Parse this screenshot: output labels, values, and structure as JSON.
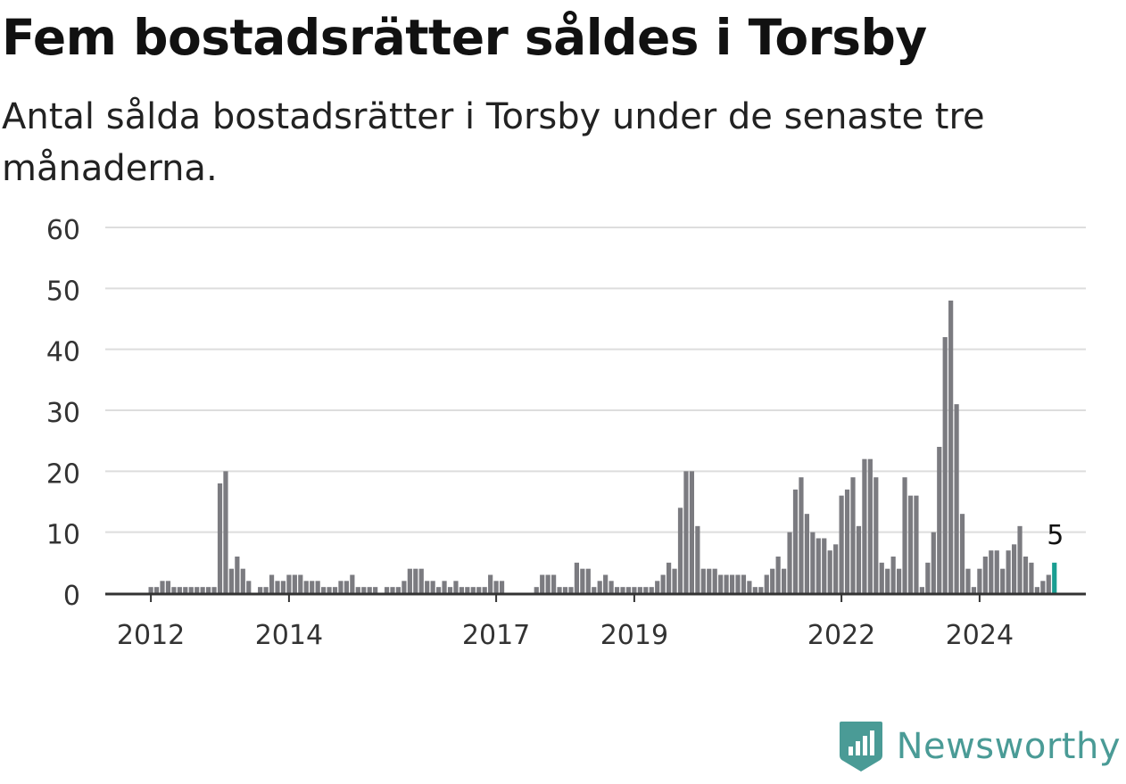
{
  "title": "Fem bostadsrätter såldes i Torsby",
  "subtitle": "Antal sålda bostadsrätter i Torsby under de senaste tre månaderna.",
  "brand": {
    "name": "Newsworthy",
    "icon": "bar-chart-logo-icon",
    "color": "#4a9b96"
  },
  "colors": {
    "bar": "#7b7b80",
    "highlight": "#1a9e92",
    "grid": "#dddddd",
    "axis": "#333333"
  },
  "chart_data": {
    "type": "bar",
    "title": "Fem bostadsrätter såldes i Torsby",
    "xlabel": "",
    "ylabel": "",
    "ylim": [
      0,
      60
    ],
    "yticks": [
      0,
      10,
      20,
      30,
      40,
      50,
      60
    ],
    "xticks": [
      "2012",
      "2014",
      "2017",
      "2019",
      "2022",
      "2024"
    ],
    "grid": true,
    "highlight_label": "5",
    "start": "2012-01",
    "values": [
      1,
      1,
      2,
      2,
      1,
      1,
      1,
      1,
      1,
      1,
      1,
      1,
      18,
      20,
      4,
      6,
      4,
      2,
      0,
      1,
      1,
      3,
      2,
      2,
      3,
      3,
      3,
      2,
      2,
      2,
      1,
      1,
      1,
      2,
      2,
      3,
      1,
      1,
      1,
      1,
      0,
      1,
      1,
      1,
      2,
      4,
      4,
      4,
      2,
      2,
      1,
      2,
      1,
      2,
      1,
      1,
      1,
      1,
      1,
      3,
      2,
      2,
      0,
      0,
      0,
      0,
      0,
      1,
      3,
      3,
      3,
      1,
      1,
      1,
      5,
      4,
      4,
      1,
      2,
      3,
      2,
      1,
      1,
      1,
      1,
      1,
      1,
      1,
      2,
      3,
      5,
      4,
      14,
      20,
      20,
      11,
      4,
      4,
      4,
      3,
      3,
      3,
      3,
      3,
      2,
      1,
      1,
      3,
      4,
      6,
      4,
      10,
      17,
      19,
      13,
      10,
      9,
      9,
      7,
      8,
      16,
      17,
      19,
      11,
      22,
      22,
      19,
      5,
      4,
      6,
      4,
      19,
      16,
      16,
      1,
      5,
      10,
      24,
      42,
      48,
      31,
      13,
      4,
      1,
      4,
      6,
      7,
      7,
      4,
      7,
      8,
      11,
      6,
      5,
      1,
      2,
      3,
      5
    ],
    "highlight_index": 157
  }
}
